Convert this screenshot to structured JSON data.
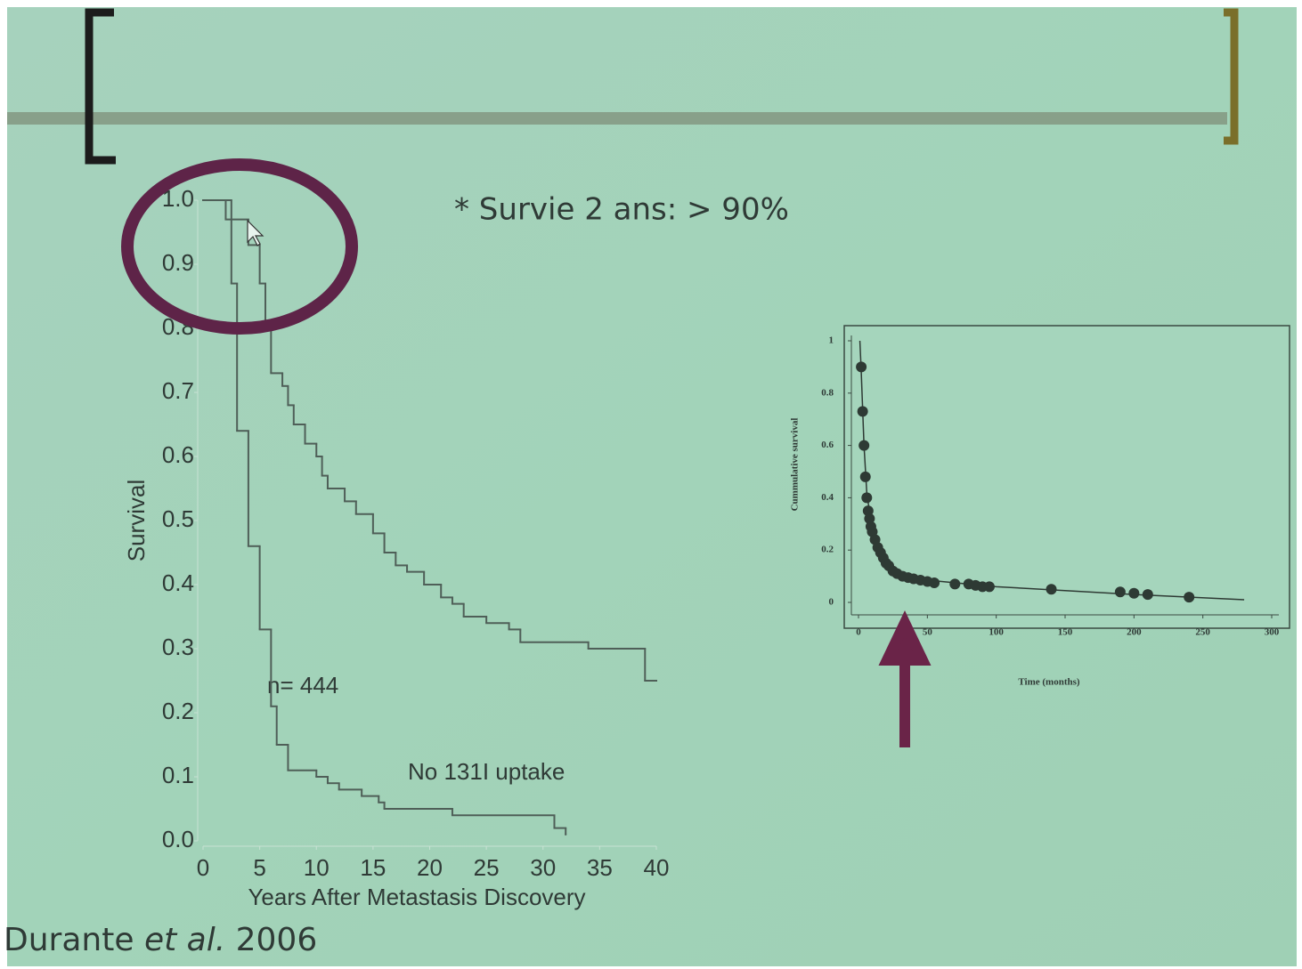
{
  "slide": {
    "note": "* Survie 2 ans: > 90%",
    "citation_author": "Durante",
    "citation_etal": "et al.",
    "citation_year": "2006"
  },
  "chart_data": [
    {
      "type": "step",
      "ylabel": "Survival",
      "xlabel": "Years After Metastasis Discovery",
      "annotations": [
        "n= 444",
        "No 131I uptake"
      ],
      "xlim": [
        0,
        40
      ],
      "xticks": [
        0,
        5,
        10,
        15,
        20,
        25,
        30,
        35,
        40
      ],
      "ylim": [
        0,
        1
      ],
      "yticks": [
        {
          "value": 0,
          "label": "0.0"
        },
        0.1,
        0.2,
        0.3,
        0.4,
        0.5,
        0.6,
        0.7,
        0.8,
        0.9,
        {
          "value": 1,
          "label": "1.0"
        }
      ],
      "color": "#4f5f58",
      "series": [
        {
          "x": [
            0,
            2,
            4,
            5,
            5.5,
            6,
            7,
            7.5,
            8,
            9,
            10,
            10.5,
            11,
            12.5,
            13.5,
            15,
            16,
            17,
            18,
            19.5,
            21,
            22,
            23,
            25,
            27,
            28,
            34,
            39,
            40
          ],
          "values": [
            1,
            0.97,
            0.93,
            0.87,
            0.8,
            0.73,
            0.71,
            0.68,
            0.65,
            0.62,
            0.6,
            0.57,
            0.55,
            0.53,
            0.51,
            0.48,
            0.45,
            0.43,
            0.42,
            0.4,
            0.38,
            0.37,
            0.35,
            0.34,
            0.33,
            0.31,
            0.3,
            0.25,
            0.25
          ]
        },
        {
          "x": [
            0,
            2.5,
            3,
            4,
            5,
            6,
            6.5,
            7.5,
            10,
            11,
            12,
            14,
            15.5,
            16,
            22,
            31,
            32
          ],
          "values": [
            1,
            0.87,
            0.64,
            0.46,
            0.33,
            0.21,
            0.15,
            0.11,
            0.1,
            0.09,
            0.08,
            0.07,
            0.06,
            0.05,
            0.04,
            0.02,
            0.01
          ]
        }
      ]
    },
    {
      "type": "scatter",
      "ylabel": "Cummulative survival",
      "xlabel": "Time (months)",
      "xlim": [
        0,
        300
      ],
      "xticks": [
        0,
        50,
        100,
        150,
        200,
        250,
        300
      ],
      "ylim": [
        0,
        1
      ],
      "yticks": [
        0,
        0.2,
        0.4,
        0.6,
        0.8,
        1
      ],
      "color": "#2e3a34",
      "x": [
        2,
        3,
        4,
        5,
        6,
        7,
        8,
        9,
        10,
        12,
        14,
        16,
        18,
        20,
        22,
        25,
        28,
        32,
        36,
        40,
        45,
        50,
        55,
        70,
        80,
        85,
        90,
        95,
        140,
        190,
        200,
        210,
        240
      ],
      "values": [
        0.9,
        0.73,
        0.6,
        0.48,
        0.4,
        0.35,
        0.32,
        0.29,
        0.27,
        0.24,
        0.21,
        0.19,
        0.17,
        0.15,
        0.14,
        0.12,
        0.11,
        0.1,
        0.095,
        0.09,
        0.085,
        0.08,
        0.075,
        0.07,
        0.07,
        0.065,
        0.06,
        0.06,
        0.05,
        0.04,
        0.035,
        0.03,
        0.02
      ],
      "fit": {
        "x": [
          1,
          2,
          4,
          6,
          10,
          20,
          40,
          100,
          200,
          280
        ],
        "values": [
          1,
          0.88,
          0.6,
          0.42,
          0.27,
          0.15,
          0.09,
          0.06,
          0.03,
          0.01
        ]
      }
    }
  ]
}
